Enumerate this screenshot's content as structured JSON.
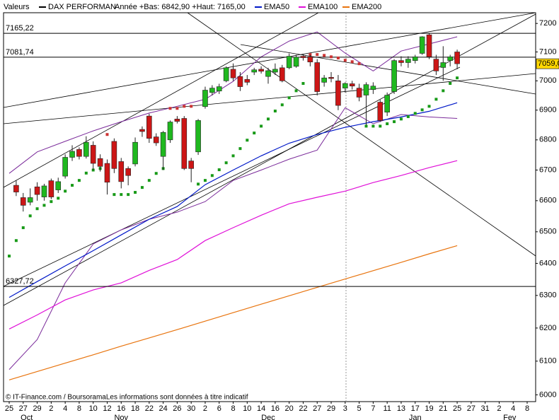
{
  "chart_data": {
    "type": "candlestick",
    "header_label": "Valeurs",
    "title": "DAX PERFORMAN",
    "subtitle": "Année +Bas: 6842,90 +Haut: 7165,00",
    "footer": "© IT-Finance.com / BoursoramaLes informations sont données à titre indicatif",
    "log": true,
    "ylim": [
      5980,
      7238
    ],
    "yticks": [
      6000,
      6100,
      6200,
      6300,
      6400,
      6500,
      6600,
      6700,
      6800,
      6900,
      7000,
      7100,
      7200
    ],
    "categories": [
      "25",
      null,
      "27",
      null,
      "29",
      null,
      "2",
      null,
      "4",
      null,
      "8",
      null,
      "10",
      null,
      "12",
      null,
      "16",
      null,
      "18",
      null,
      "22",
      null,
      "24",
      null,
      "26",
      null,
      "30",
      null,
      "2",
      null,
      "6",
      null,
      "8",
      null,
      "10",
      null,
      "14",
      null,
      "16",
      null,
      "20",
      null,
      "22",
      null,
      "27",
      null,
      "29",
      null,
      "3",
      null,
      "5",
      null,
      "7",
      null,
      "11",
      null,
      "13",
      null,
      "17",
      null,
      "19",
      null,
      "21",
      null,
      "25",
      null,
      "27",
      null,
      "31",
      null,
      "2",
      null,
      "4",
      null,
      "8"
    ],
    "months": [
      "Oct",
      "Nov",
      "Dec",
      "Jan",
      "Fev"
    ],
    "up_color": "#1fb81f",
    "down_color": "#cc1616",
    "open": [
      null,
      6650,
      6610,
      6595,
      6645,
      6612,
      6665,
      6635,
      6680,
      6742,
      6768,
      6745,
      6782,
      6738,
      6722,
      6795,
      6728,
      6705,
      6720,
      6835,
      6880,
      6810,
      6745,
      6800,
      6870,
      6872,
      6730,
      6760,
      6912,
      6960,
      6965,
      7000,
      7040,
      7015,
      7005,
      7030,
      7040,
      7015,
      7030,
      7045,
      7045,
      7050,
      7085,
      7083,
      7063,
      6995,
      7012,
      7000,
      6975,
      6990,
      6975,
      6951,
      6970,
      6927,
      6893,
      6963,
      7070,
      7063,
      7070,
      7095,
      7160,
      7075,
      7046,
      7070,
      7100,
      null,
      null,
      null,
      null,
      null,
      null,
      null,
      null,
      null,
      null
    ],
    "high": [
      null,
      6665,
      6625,
      6640,
      6660,
      6655,
      6672,
      6675,
      6752,
      6782,
      6775,
      6812,
      6795,
      6752,
      6735,
      6805,
      6740,
      6712,
      6808,
      6845,
      6888,
      6822,
      6830,
      6865,
      6880,
      6880,
      6740,
      6870,
      6980,
      6985,
      6990,
      7050,
      7060,
      7030,
      7020,
      7045,
      7050,
      7045,
      7060,
      7055,
      7095,
      7090,
      7092,
      7090,
      7075,
      7020,
      7030,
      7020,
      6995,
      7000,
      6990,
      6995,
      6995,
      6935,
      6960,
      7075,
      7085,
      7085,
      7090,
      7155,
      7165,
      7090,
      7120,
      7090,
      7108,
      null,
      null,
      null,
      null,
      null,
      null,
      null,
      null,
      null,
      null
    ],
    "low": [
      null,
      6615,
      6565,
      6585,
      6600,
      6600,
      6605,
      6625,
      6672,
      6730,
      6735,
      6738,
      6700,
      6695,
      6620,
      6690,
      6640,
      6650,
      6712,
      6810,
      6790,
      6780,
      6700,
      6790,
      6855,
      6700,
      6660,
      6750,
      6905,
      6950,
      6955,
      6995,
      7000,
      6965,
      6985,
      7020,
      7025,
      6990,
      7020,
      6995,
      7040,
      7045,
      7070,
      7050,
      6950,
      6980,
      6995,
      6900,
      6960,
      6970,
      6930,
      6850,
      6955,
      6860,
      6880,
      6955,
      7050,
      7045,
      7060,
      7090,
      7075,
      7020,
      7000,
      7050,
      7040,
      null,
      null,
      null,
      null,
      null,
      null,
      null,
      null,
      null,
      null
    ],
    "close": [
      null,
      6628,
      6585,
      6610,
      6620,
      6648,
      6612,
      6662,
      6742,
      6762,
      6745,
      6792,
      6722,
      6712,
      6660,
      6705,
      6662,
      6682,
      6792,
      6828,
      6805,
      6790,
      6825,
      6860,
      6862,
      6705,
      6705,
      6865,
      6968,
      6975,
      6980,
      7045,
      7010,
      6980,
      6995,
      7038,
      7033,
      7035,
      7040,
      7000,
      7085,
      7082,
      7080,
      7065,
      6963,
      7010,
      7008,
      6916,
      6991,
      6982,
      6944,
      6987,
      6982,
      6865,
      6951,
      7070,
      7063,
      7075,
      7083,
      7153,
      7083,
      7034,
      7063,
      7083,
      7059,
      null,
      null,
      null,
      null,
      null,
      null,
      null,
      null,
      null,
      null
    ],
    "sar": [
      6423,
      6472,
      6513,
      6551,
      6574,
      6585,
      6597,
      6608,
      6631,
      6650,
      6666,
      6690,
      6700,
      6705,
      6818,
      6620,
      6620,
      6620,
      6627,
      6643,
      6666,
      6689,
      6705,
      6906,
      6906,
      6913,
      6913,
      6654,
      6666,
      6682,
      6701,
      6724,
      6747,
      6771,
      6799,
      6823,
      6846,
      6870,
      6897,
      6918,
      6942,
      6966,
      6991,
      7091,
      7091,
      7088,
      7083,
      7079,
      7071,
      7066,
      7059,
      6846,
      6846,
      6846,
      6854,
      6861,
      6870,
      6878,
      6889,
      6901,
      6913,
      6937,
      6966,
      6991,
      7010,
      null,
      null,
      null,
      null,
      null,
      null,
      null,
      null,
      null,
      null
    ],
    "sar_color_below": "#189a18",
    "sar_color_above": "#cc3333",
    "bands": [
      {
        "color": "#7a2a9a",
        "x": [
          0,
          4,
          8,
          12,
          16,
          20,
          24,
          28,
          32,
          36,
          40,
          44,
          48,
          52,
          56,
          60,
          64
        ],
        "values": [
          6689,
          6760,
          6795,
          6830,
          6861,
          6890,
          6913,
          6937,
          6998,
          7083,
          7138,
          7170,
          7096,
          7034,
          7103,
          7128,
          7153
        ]
      },
      {
        "color": "#7a2a9a",
        "x": [
          0,
          4,
          8,
          12,
          16,
          20,
          24,
          28,
          32,
          36,
          40,
          44,
          48,
          52,
          56,
          60,
          64
        ],
        "values": [
          6075,
          6165,
          6339,
          6461,
          6506,
          6540,
          6563,
          6597,
          6666,
          6700,
          6736,
          6766,
          6908,
          6854,
          6885,
          6877,
          6872
        ]
      }
    ],
    "series": [
      {
        "name": "EMA50",
        "color": "#0018c8",
        "x": [
          0,
          4,
          8,
          12,
          16,
          20,
          24,
          28,
          32,
          36,
          40,
          44,
          48,
          52,
          56,
          60,
          64
        ],
        "values": [
          6294,
          6343,
          6392,
          6440,
          6490,
          6540,
          6581,
          6652,
          6700,
          6747,
          6789,
          6818,
          6842,
          6861,
          6877,
          6896,
          6925
        ]
      },
      {
        "name": "EMA100",
        "color": "#e010d8",
        "x": [
          0,
          4,
          8,
          12,
          16,
          20,
          24,
          28,
          32,
          36,
          40,
          44,
          48,
          52,
          56,
          60,
          64
        ],
        "values": [
          6197,
          6240,
          6286,
          6317,
          6339,
          6378,
          6412,
          6472,
          6513,
          6553,
          6590,
          6611,
          6631,
          6659,
          6682,
          6708,
          6731
        ]
      },
      {
        "name": "EMA200",
        "color": "#e8740e",
        "x": [
          0,
          4,
          8,
          12,
          16,
          20,
          24,
          28,
          32,
          36,
          40,
          44,
          48,
          52,
          56,
          60,
          64
        ],
        "values": [
          6044,
          6069,
          6094,
          6119,
          6145,
          6170,
          6195,
          6221,
          6247,
          6273,
          6299,
          6325,
          6351,
          6377,
          6403,
          6430,
          6456
        ]
      }
    ],
    "levels": [
      {
        "value": 7165.22,
        "label": "7165,22"
      },
      {
        "value": 7081.74,
        "label": "7081,74"
      },
      {
        "value": 6327.72,
        "label": "6327,72"
      }
    ],
    "last": {
      "value": 7059.0,
      "label": "7059,0"
    }
  }
}
